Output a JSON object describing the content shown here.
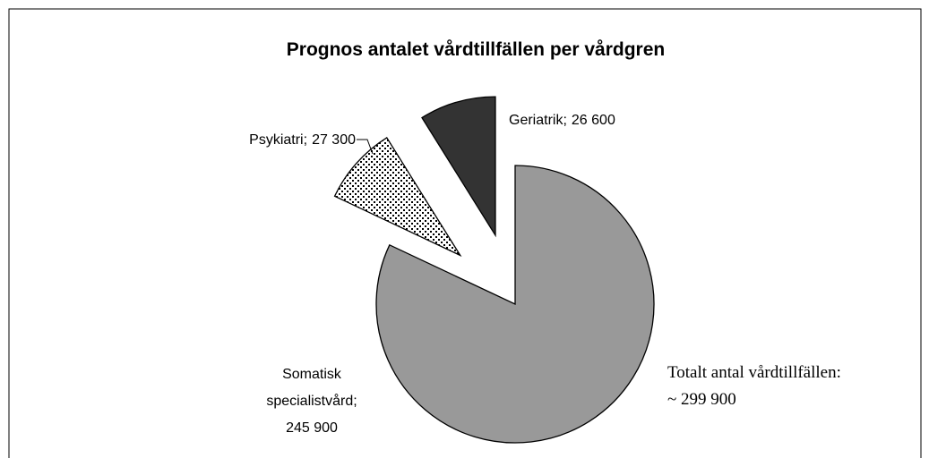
{
  "chart_data": {
    "type": "pie",
    "title": "Prognos antalet vårdtillfällen per vårdgren",
    "categories": [
      "Somatisk specialistvård;",
      "Psykiatri;",
      "Geriatrik;"
    ],
    "values": [
      245900,
      27300,
      26600
    ],
    "value_labels": [
      "245 900",
      "27 300",
      "26 600"
    ],
    "colors": [
      "#999999",
      "url(#dots)",
      "#333333"
    ],
    "annotation": [
      "Totalt antal vårdtillfällen:",
      "~ 299 900"
    ]
  }
}
